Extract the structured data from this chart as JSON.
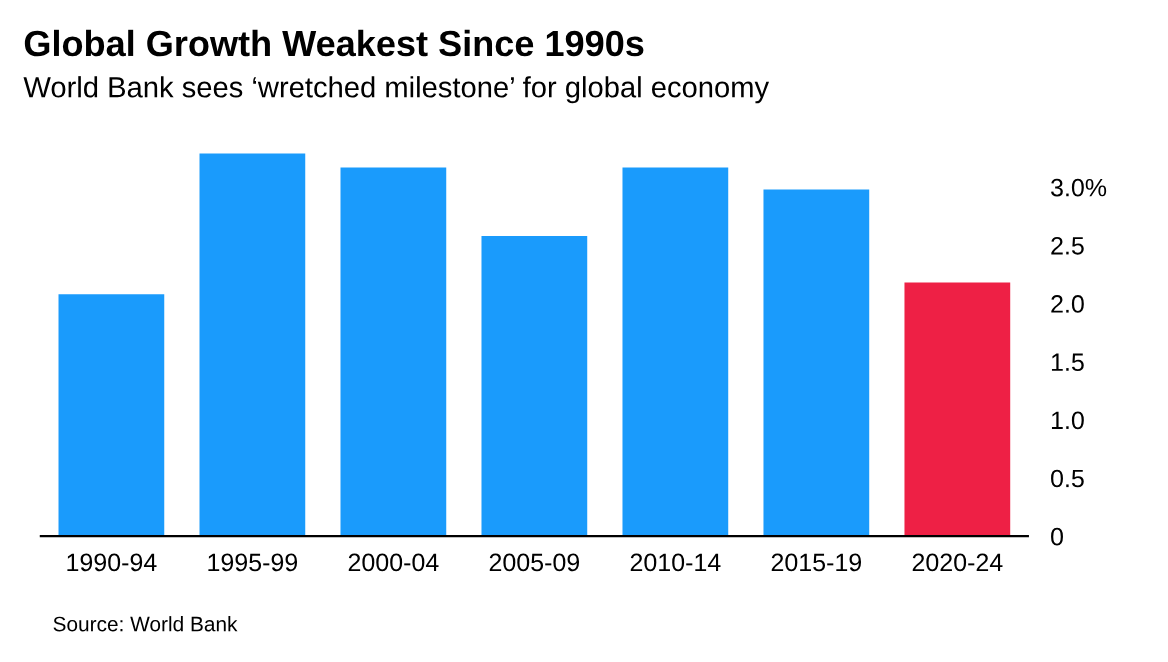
{
  "chart_data": {
    "type": "bar",
    "title": "Global Growth Weakest Since 1990s",
    "subtitle": "World Bank sees ‘wretched milestone’ for global economy",
    "categories": [
      "1990-94",
      "1995-99",
      "2000-04",
      "2005-09",
      "2010-14",
      "2015-19",
      "2020-24"
    ],
    "values": [
      2.08,
      3.29,
      3.17,
      2.58,
      3.17,
      2.98,
      2.18
    ],
    "colors": [
      "#1a9bfc",
      "#1a9bfc",
      "#1a9bfc",
      "#1a9bfc",
      "#1a9bfc",
      "#1a9bfc",
      "#ee2045"
    ],
    "ylim": [
      0,
      3.3
    ],
    "yticks": [
      {
        "value": 0,
        "label": "0"
      },
      0.5,
      {
        "value": 1,
        "label": "1.0"
      },
      1.5,
      {
        "value": 2,
        "label": "2.0"
      },
      2.5,
      {
        "value": 3,
        "label": "3.0%"
      }
    ],
    "grid": false,
    "legend": false,
    "annotations": [
      "Source: World Bank"
    ]
  }
}
